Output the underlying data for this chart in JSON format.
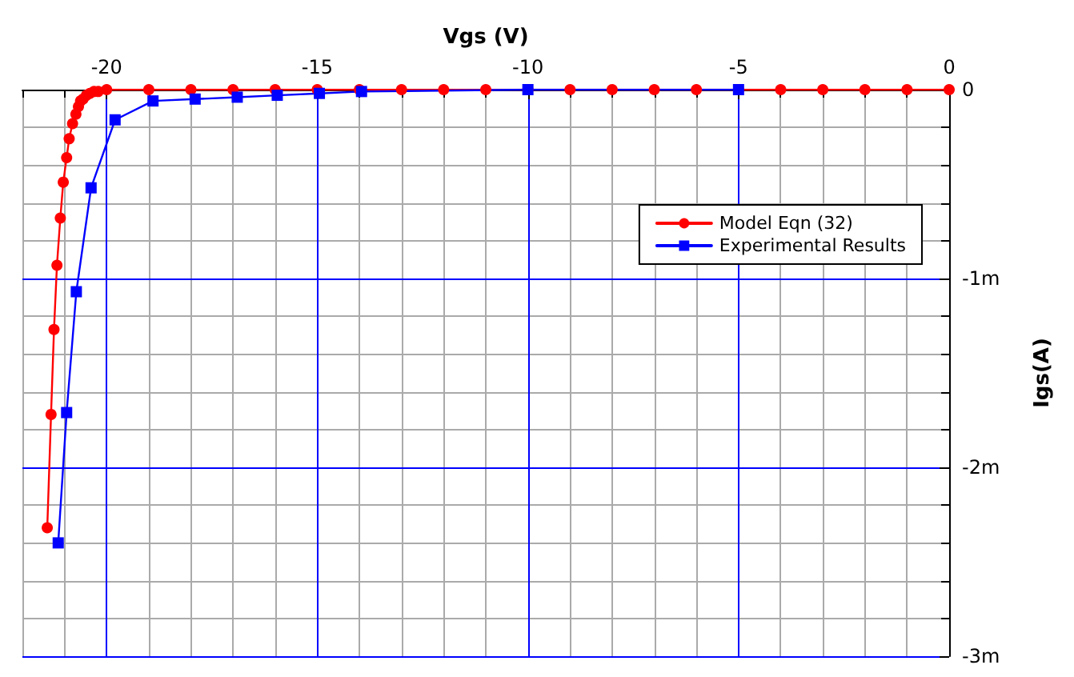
{
  "chart_data": {
    "type": "line",
    "xlabel": "Vgs (V)",
    "ylabel": "Igs(A)",
    "xlim": [
      -22,
      0
    ],
    "xticks": [
      -20,
      -15,
      -10,
      -5,
      0
    ],
    "ylim": [
      -3,
      0
    ],
    "yticks": [
      {
        "value": -3,
        "label": "-3m"
      },
      {
        "value": -2,
        "label": "-2m"
      },
      {
        "value": -1,
        "label": "-1m"
      },
      0
    ],
    "grid": true,
    "legend": "right",
    "line_style": "solid",
    "series": [
      {
        "name": "Model Eqn (32)",
        "color": "#ff0000",
        "marker": "circle",
        "x": [
          -21.41,
          -21.32,
          -21.25,
          -21.18,
          -21.1,
          -21.03,
          -20.95,
          -20.89,
          -20.81,
          -20.73,
          -20.67,
          -20.62,
          -20.56,
          -20.48,
          -20.4,
          -20.3,
          -20.2,
          -20.0,
          -19,
          -18,
          -17,
          -16,
          -15,
          -14,
          -13,
          -12,
          -11,
          -10,
          -9,
          -8,
          -7,
          -6,
          -5,
          -4,
          -3,
          -2,
          -1,
          0
        ],
        "values": [
          -2.32,
          -1.72,
          -1.27,
          -0.93,
          -0.68,
          -0.49,
          -0.36,
          -0.26,
          -0.18,
          -0.13,
          -0.09,
          -0.06,
          -0.05,
          -0.03,
          -0.02,
          -0.01,
          -0.01,
          0,
          0,
          0,
          0,
          0,
          0,
          0,
          0,
          0,
          0,
          0,
          0,
          0,
          0,
          0,
          0,
          0,
          0,
          0,
          0,
          0
        ]
      },
      {
        "name": "Experimental Results",
        "color": "#0000ff",
        "marker": "square",
        "x": [
          -21.15,
          -20.95,
          -20.72,
          -20.37,
          -19.8,
          -18.9,
          -17.9,
          -16.9,
          -15.95,
          -14.95,
          -13.95,
          -10,
          -5
        ],
        "values": [
          -2.4,
          -1.71,
          -1.07,
          -0.52,
          -0.16,
          -0.06,
          -0.05,
          -0.04,
          -0.03,
          -0.02,
          -0.01,
          0,
          0
        ]
      }
    ]
  }
}
